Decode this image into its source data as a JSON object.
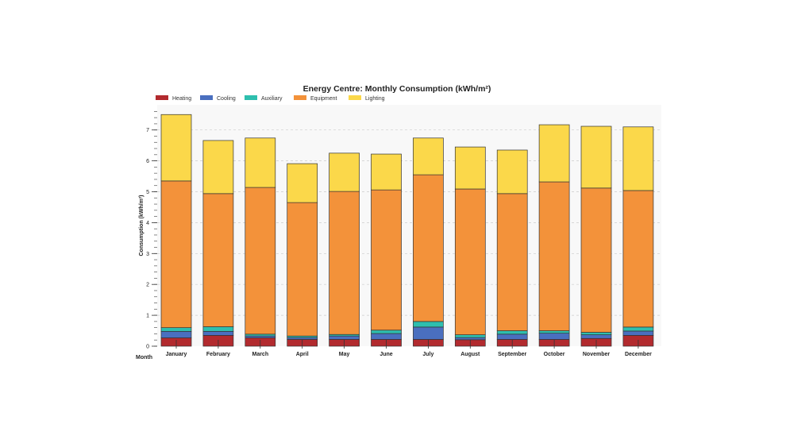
{
  "chart_data": {
    "type": "bar",
    "stacked": true,
    "title": "Energy Centre: Monthly Consumption (kWh/m²)",
    "xlabel": "Month",
    "ylabel": "Consumption (kWh/m²)",
    "ylim": [
      0,
      7.6
    ],
    "yticks": [
      0,
      1,
      2,
      3,
      4,
      5,
      6,
      7
    ],
    "grid": "horizontal dashed at integer ticks",
    "legend": "top-left",
    "categories": [
      "January",
      "February",
      "March",
      "April",
      "May",
      "June",
      "July",
      "August",
      "September",
      "October",
      "November",
      "December"
    ],
    "series": [
      {
        "name": "Heating",
        "color": "#b22a2e",
        "values": [
          0.27,
          0.35,
          0.27,
          0.22,
          0.22,
          0.22,
          0.22,
          0.21,
          0.22,
          0.22,
          0.25,
          0.35
        ]
      },
      {
        "name": "Cooling",
        "color": "#4a6fbf",
        "values": [
          0.21,
          0.13,
          0.06,
          0.06,
          0.11,
          0.19,
          0.4,
          0.07,
          0.17,
          0.2,
          0.12,
          0.14
        ]
      },
      {
        "name": "Auxiliary",
        "color": "#2ebfae",
        "values": [
          0.12,
          0.15,
          0.06,
          0.05,
          0.05,
          0.11,
          0.18,
          0.09,
          0.11,
          0.08,
          0.08,
          0.13
        ]
      },
      {
        "name": "Equipment",
        "color": "#f3923a",
        "values": [
          4.75,
          4.31,
          4.75,
          4.32,
          4.63,
          4.54,
          4.75,
          4.72,
          4.44,
          4.82,
          4.67,
          4.42
        ]
      },
      {
        "name": "Lighting",
        "color": "#fbd84a",
        "values": [
          2.15,
          1.72,
          1.6,
          1.26,
          1.24,
          1.16,
          1.19,
          1.36,
          1.41,
          1.85,
          2.0,
          2.06
        ]
      }
    ]
  }
}
